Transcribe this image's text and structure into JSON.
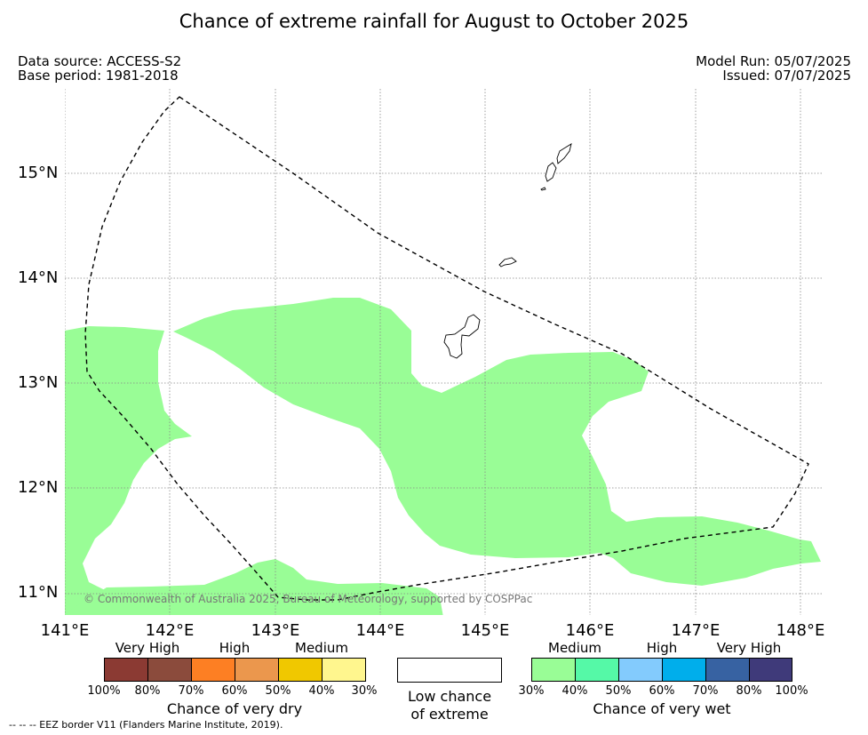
{
  "title": "Chance of extreme rainfall for August to October 2025",
  "meta": {
    "data_source": "Data source: ACCESS-S2",
    "base_period": "Base period: 1981-2018",
    "model_run": "Model Run: 05/07/2025",
    "issued": "Issued: 07/07/2025"
  },
  "map": {
    "lat_ticks": [
      "15°N",
      "14°N",
      "13°N",
      "12°N",
      "11°N"
    ],
    "lon_ticks": [
      "141°E",
      "142°E",
      "143°E",
      "144°E",
      "145°E",
      "146°E",
      "147°E",
      "148°E"
    ],
    "copyright": "© Commonwealth of Australia 2025, Bureau of Meteorology, supported by COSPPac",
    "wet_medium_color": "#99fd96",
    "eez_border_style": "dashed"
  },
  "legend": {
    "dry": {
      "title": "Chance of very dry",
      "headers": [
        "Very High",
        "High",
        "Medium"
      ],
      "colors": [
        "#8b3a33",
        "#8b4b3c",
        "#fd7f23",
        "#eb974d",
        "#f0c800",
        "#fff68e"
      ],
      "ticks": [
        "100%",
        "80%",
        "70%",
        "60%",
        "50%",
        "40%",
        "30%"
      ]
    },
    "low": {
      "line1": "Low chance",
      "line2": "of extreme",
      "color": "#ffffff"
    },
    "wet": {
      "title": "Chance of very wet",
      "headers": [
        "Medium",
        "High",
        "Very High"
      ],
      "colors": [
        "#99fd96",
        "#55f9a7",
        "#83cbfd",
        "#00aeeb",
        "#3762a2",
        "#3f3a7a"
      ],
      "ticks": [
        "30%",
        "40%",
        "50%",
        "60%",
        "70%",
        "80%",
        "100%"
      ]
    }
  },
  "footnote": "--  --  -- EEZ border V11 (Flanders Marine Institute, 2019)."
}
